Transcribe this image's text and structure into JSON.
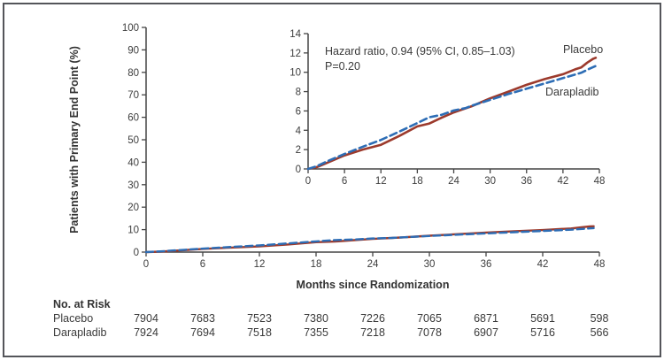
{
  "figure": {
    "background": "#ffffff",
    "border_color": "#54555a"
  },
  "chart_data": {
    "type": "line",
    "title": "",
    "xlabel": "Months since Randomization",
    "ylabel": "Patients with Primary End Point (%)",
    "grid": false,
    "legend_position": "inline-labels-inset",
    "series": [
      {
        "name": "Placebo",
        "color": "#9c3a2c",
        "line_style": "solid",
        "points": [
          [
            0,
            0
          ],
          [
            1.5,
            0.2
          ],
          [
            3,
            0.6
          ],
          [
            6,
            1.4
          ],
          [
            9,
            2.0
          ],
          [
            12,
            2.5
          ],
          [
            15,
            3.4
          ],
          [
            18,
            4.4
          ],
          [
            20,
            4.7
          ],
          [
            22,
            5.3
          ],
          [
            24,
            5.85
          ],
          [
            27,
            6.5
          ],
          [
            30,
            7.3
          ],
          [
            33,
            8.0
          ],
          [
            36,
            8.7
          ],
          [
            39,
            9.3
          ],
          [
            42,
            9.8
          ],
          [
            44,
            10.3
          ],
          [
            45,
            10.5
          ],
          [
            46,
            11.0
          ],
          [
            47,
            11.4
          ],
          [
            47.4,
            11.5
          ]
        ]
      },
      {
        "name": "Darapladib",
        "color": "#2d6db5",
        "line_style": "dashed",
        "points": [
          [
            0,
            0
          ],
          [
            1.5,
            0.3
          ],
          [
            3,
            0.75
          ],
          [
            6,
            1.55
          ],
          [
            9,
            2.3
          ],
          [
            12,
            3.0
          ],
          [
            15,
            3.85
          ],
          [
            18,
            4.75
          ],
          [
            20,
            5.35
          ],
          [
            22,
            5.6
          ],
          [
            24,
            6.05
          ],
          [
            26,
            6.3
          ],
          [
            27,
            6.55
          ],
          [
            30,
            7.15
          ],
          [
            33,
            7.75
          ],
          [
            36,
            8.3
          ],
          [
            39,
            8.85
          ],
          [
            42,
            9.4
          ],
          [
            45,
            9.95
          ],
          [
            46.5,
            10.4
          ],
          [
            47.4,
            10.65
          ]
        ]
      }
    ],
    "main_axes": {
      "xlim": [
        0,
        48
      ],
      "ylim": [
        0,
        100
      ],
      "xticks": [
        0,
        6,
        12,
        18,
        24,
        30,
        36,
        42,
        48
      ],
      "yticks": [
        0,
        10,
        20,
        30,
        40,
        50,
        60,
        70,
        80,
        90,
        100
      ]
    },
    "inset_axes": {
      "xlim": [
        0,
        48
      ],
      "ylim": [
        0,
        14
      ],
      "xticks": [
        0,
        6,
        12,
        18,
        24,
        30,
        36,
        42,
        48
      ],
      "yticks": [
        0,
        2,
        4,
        6,
        8,
        10,
        12,
        14
      ]
    },
    "inset_annotation": {
      "line1": "Hazard ratio, 0.94 (95% CI, 0.85–1.03)",
      "line2": "P=0.20"
    }
  },
  "risk_table": {
    "title": "No. at Risk",
    "months": [
      0,
      6,
      12,
      18,
      24,
      30,
      36,
      42,
      48
    ],
    "rows": [
      {
        "label": "Placebo",
        "values": [
          7904,
          7683,
          7523,
          7380,
          7226,
          7065,
          6871,
          5691,
          598
        ]
      },
      {
        "label": "Darapladib",
        "values": [
          7924,
          7694,
          7518,
          7355,
          7218,
          7078,
          6907,
          5716,
          566
        ]
      }
    ]
  }
}
